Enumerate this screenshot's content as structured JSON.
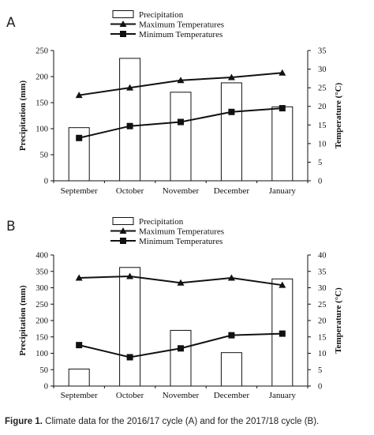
{
  "caption": {
    "label": "Figure 1.",
    "text": "Climate data for the 2016/17 cycle (A) and for the 2017/18 cycle (B)."
  },
  "chart_data": [
    {
      "type": "bar",
      "panel_label": "A",
      "categories": [
        "September",
        "October",
        "November",
        "December",
        "January"
      ],
      "series": [
        {
          "name": "Precipitation",
          "type": "bar",
          "axis": "left",
          "values": [
            102,
            235,
            170,
            188,
            142
          ]
        },
        {
          "name": "Maximum  Temperatures",
          "type": "line",
          "marker": "triangle",
          "axis": "right",
          "values": [
            23,
            25,
            27,
            27.8,
            29
          ]
        },
        {
          "name": "Minimum  Temperatures",
          "type": "line",
          "marker": "square",
          "axis": "right",
          "values": [
            11.5,
            14.7,
            15.8,
            18.5,
            19.5
          ]
        }
      ],
      "ylabel": "Precipitation (mm)",
      "ylabel_right": "Temperature (°C)",
      "ylim": [
        0,
        250
      ],
      "ylim_right": [
        0,
        35
      ],
      "yticks": [
        "0",
        "50",
        "100",
        "150",
        "200",
        "250"
      ],
      "yticks_right": [
        "0",
        "5",
        "10",
        "15",
        "20",
        "25",
        "30",
        "35"
      ],
      "grid": false,
      "legend_position": "top-center"
    },
    {
      "type": "bar",
      "panel_label": "B",
      "categories": [
        "September",
        "October",
        "November",
        "December",
        "January"
      ],
      "series": [
        {
          "name": "Precipitation",
          "type": "bar",
          "axis": "left",
          "values": [
            52,
            362,
            170,
            102,
            327
          ]
        },
        {
          "name": "Maximum  Temperatures",
          "type": "line",
          "marker": "triangle",
          "axis": "right",
          "values": [
            33,
            33.5,
            31.5,
            33,
            30.8
          ]
        },
        {
          "name": "Minimum  Temperatures",
          "type": "line",
          "marker": "square",
          "axis": "right",
          "values": [
            12.5,
            8.8,
            11.5,
            15.5,
            16
          ]
        }
      ],
      "ylabel": "Precipitation (mm)",
      "ylabel_right": "Temperature (°C)",
      "ylim": [
        0,
        400
      ],
      "ylim_right": [
        0,
        40
      ],
      "yticks": [
        "0",
        "50",
        "100",
        "150",
        "200",
        "250",
        "300",
        "350",
        "400"
      ],
      "yticks_right": [
        "0",
        "5",
        "10",
        "15",
        "20",
        "25",
        "30",
        "35",
        "40"
      ],
      "grid": false,
      "legend_position": "top-center"
    }
  ]
}
